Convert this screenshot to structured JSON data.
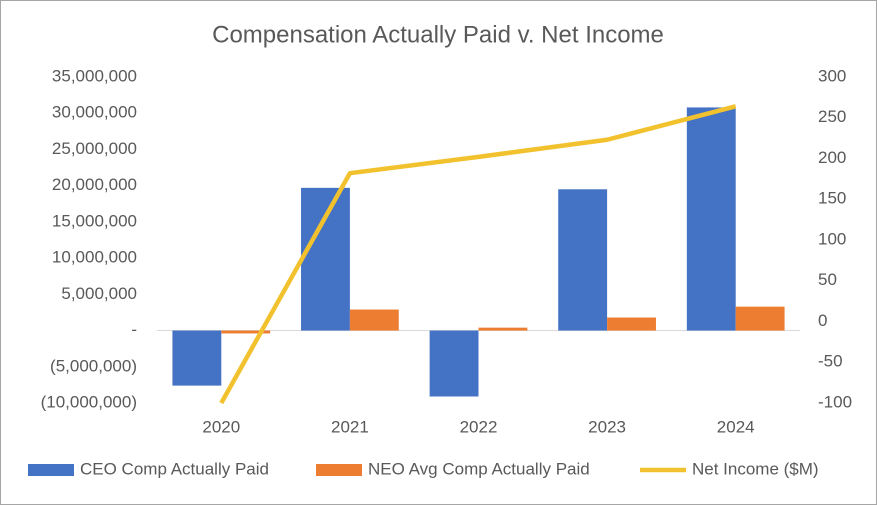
{
  "chart_data": {
    "type": "bar",
    "title": "Compensation Actually Paid v. Net Income",
    "categories": [
      "2020",
      "2021",
      "2022",
      "2023",
      "2024"
    ],
    "series": [
      {
        "name": "CEO Comp Actually Paid",
        "color": "#4472c4",
        "type": "bar",
        "values": [
          -7600000,
          19700000,
          -9100000,
          19500000,
          30800000
        ]
      },
      {
        "name": "NEO Avg Comp Actually Paid",
        "color": "#ed7d31",
        "type": "bar",
        "values": [
          -400000,
          2900000,
          400000,
          1800000,
          3300000
        ]
      },
      {
        "name": "Net Income ($M)",
        "color": "#f2c22e",
        "type": "line",
        "axis": "y2",
        "values": [
          -100,
          182,
          202,
          223,
          264
        ]
      }
    ],
    "ylim": [
      -10000000,
      35000000
    ],
    "yticks": [
      {
        "value": 35000000,
        "label": "35,000,000"
      },
      {
        "value": 30000000,
        "label": "30,000,000"
      },
      {
        "value": 25000000,
        "label": "25,000,000"
      },
      {
        "value": 20000000,
        "label": "20,000,000"
      },
      {
        "value": 15000000,
        "label": "15,000,000"
      },
      {
        "value": 10000000,
        "label": "10,000,000"
      },
      {
        "value": 5000000,
        "label": "5,000,000"
      },
      {
        "value": 0,
        "label": "-"
      },
      {
        "value": -5000000,
        "label": "(5,000,000)"
      },
      {
        "value": -10000000,
        "label": "(10,000,000)"
      }
    ],
    "y2lim": [
      -100,
      300
    ],
    "y2ticks": [
      300,
      250,
      200,
      150,
      100,
      50,
      0,
      -50,
      -100
    ],
    "grid": false,
    "legend": "bottom"
  }
}
